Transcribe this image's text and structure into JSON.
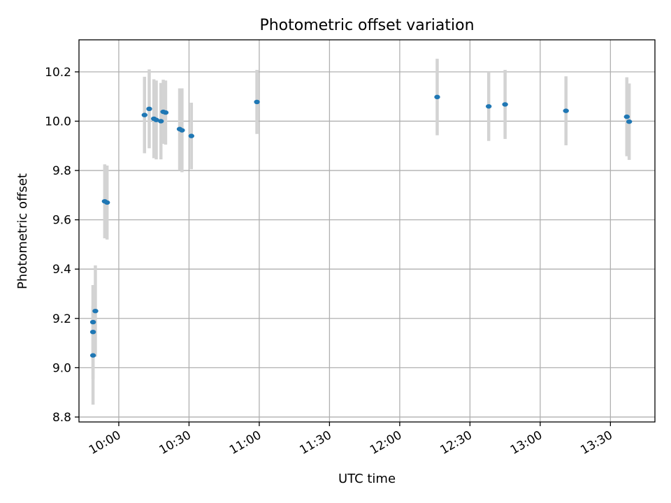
{
  "chart_data": {
    "type": "scatter",
    "title": "Photometric offset variation",
    "xlabel": "UTC time",
    "ylabel": "Photometric offset",
    "x_ticks": [
      "10:00",
      "10:30",
      "11:00",
      "11:30",
      "12:00",
      "12:30",
      "13:00",
      "13:30"
    ],
    "y_ticks": [
      "8.8",
      "9.0",
      "9.2",
      "9.4",
      "9.6",
      "9.8",
      "10.0",
      "10.2"
    ],
    "xlim": [
      "09:43",
      "13:49"
    ],
    "ylim": [
      8.78,
      10.33
    ],
    "grid": true,
    "colors": {
      "point": "#1f77b4",
      "errorbar": "#d3d3d3"
    },
    "series": [
      {
        "x": [
          "09:49",
          "09:49",
          "09:49",
          "09:50",
          "09:54",
          "09:55",
          "10:11",
          "10:13",
          "10:15",
          "10:16",
          "10:18",
          "10:19",
          "10:20",
          "10:26",
          "10:27",
          "10:31",
          "10:59",
          "12:16",
          "12:38",
          "12:45",
          "13:11",
          "13:37",
          "13:38"
        ],
        "y": [
          9.05,
          9.145,
          9.185,
          9.23,
          9.675,
          9.67,
          10.025,
          10.05,
          10.01,
          10.005,
          10.0,
          10.038,
          10.035,
          9.968,
          9.963,
          9.94,
          10.078,
          10.098,
          10.06,
          10.068,
          10.042,
          10.018,
          9.998
        ],
        "yerr": [
          0.2,
          0.19,
          0.15,
          0.185,
          0.15,
          0.15,
          0.155,
          0.16,
          0.16,
          0.16,
          0.155,
          0.13,
          0.13,
          0.165,
          0.17,
          0.135,
          0.13,
          0.155,
          0.14,
          0.14,
          0.14,
          0.16,
          0.155
        ]
      }
    ]
  }
}
